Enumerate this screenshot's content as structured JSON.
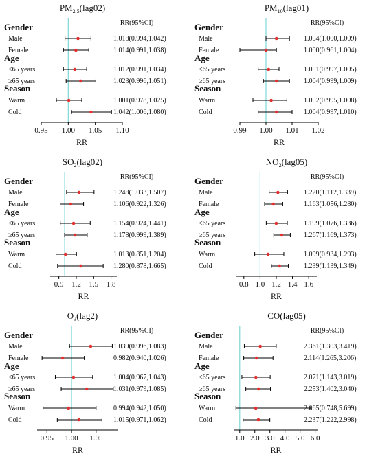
{
  "colors": {
    "refline": "#7fd8d8",
    "point": "#e03030",
    "ci": "#000000",
    "axis": "#000000"
  },
  "chart_data": [
    {
      "type": "forest",
      "title": "PM2.5(lag02)",
      "title_main": "PM",
      "title_sub": "2.5",
      "title_tail": "(lag02)",
      "header": "RR(95%CI)",
      "xlabel": "RR",
      "xlim": [
        0.95,
        1.1
      ],
      "ticks": [
        "0.95",
        "1.00",
        "1.05",
        "1.10"
      ],
      "tick_values": [
        0.95,
        1.0,
        1.05,
        1.1
      ],
      "ref": 1.0,
      "groups": [
        {
          "name": "Gender",
          "rows": [
            {
              "label": "Male",
              "rr": 1.018,
              "lo": 0.994,
              "hi": 1.042,
              "text": "1.018(0.994,1.042)"
            },
            {
              "label": "Female",
              "rr": 1.014,
              "lo": 0.991,
              "hi": 1.038,
              "text": "1.014(0.991,1.038)"
            }
          ]
        },
        {
          "name": "Age",
          "rows": [
            {
              "label": "<65 years",
              "rr": 1.012,
              "lo": 0.991,
              "hi": 1.034,
              "text": "1.012(0.991,1.034)"
            },
            {
              "label": "≥65 years",
              "rr": 1.023,
              "lo": 0.996,
              "hi": 1.051,
              "text": "1.023(0.996,1.051)"
            }
          ]
        },
        {
          "name": "Season",
          "rows": [
            {
              "label": "Warm",
              "rr": 1.001,
              "lo": 0.978,
              "hi": 1.025,
              "text": "1.001(0.978,1.025)"
            },
            {
              "label": "Cold",
              "rr": 1.042,
              "lo": 1.006,
              "hi": 1.08,
              "text": "1.042(1.006,1.080)"
            }
          ]
        }
      ]
    },
    {
      "type": "forest",
      "title": "PM10(lag01)",
      "title_main": "PM",
      "title_sub": "10",
      "title_tail": "(lag01)",
      "header": "RR(95%CI)",
      "xlabel": "RR",
      "xlim": [
        0.99,
        1.02
      ],
      "ticks": [
        "0.99",
        "1.00",
        "1.01",
        "1.02"
      ],
      "tick_values": [
        0.99,
        1.0,
        1.01,
        1.02
      ],
      "ref": 1.0,
      "groups": [
        {
          "name": "Gender",
          "rows": [
            {
              "label": "Male",
              "rr": 1.004,
              "lo": 1.0,
              "hi": 1.009,
              "text": "1.004(1.000,1.009)"
            },
            {
              "label": "Female",
              "rr": 1.0,
              "lo": 0.961,
              "hi": 1.004,
              "text": "1.000(0.961,1.004)"
            }
          ]
        },
        {
          "name": "Age",
          "rows": [
            {
              "label": "<65 years",
              "rr": 1.001,
              "lo": 0.997,
              "hi": 1.005,
              "text": "1.001(0.997,1.005)"
            },
            {
              "label": "≥65 years",
              "rr": 1.004,
              "lo": 0.999,
              "hi": 1.009,
              "text": "1.004(0.999,1.009)"
            }
          ]
        },
        {
          "name": "Season",
          "rows": [
            {
              "label": "Warm",
              "rr": 1.002,
              "lo": 0.995,
              "hi": 1.008,
              "text": "1.002(0.995,1.008)"
            },
            {
              "label": "Cold",
              "rr": 1.004,
              "lo": 0.997,
              "hi": 1.01,
              "text": "1.004(0.997,1.010)"
            }
          ]
        }
      ]
    },
    {
      "type": "forest",
      "title": "SO2(lag02)",
      "title_main": "SO",
      "title_sub": "2",
      "title_tail": "(lag02)",
      "header": "RR(95%CI)",
      "xlabel": "RR",
      "xlim": [
        0.75,
        1.9
      ],
      "ticks": [
        "0.9",
        "1.2",
        "1.5",
        "1.8"
      ],
      "tick_values": [
        0.9,
        1.2,
        1.5,
        1.8
      ],
      "ref": 1.0,
      "groups": [
        {
          "name": "Gender",
          "rows": [
            {
              "label": "Male",
              "rr": 1.248,
              "lo": 1.033,
              "hi": 1.507,
              "text": "1.248(1.033,1.507)"
            },
            {
              "label": "Female",
              "rr": 1.106,
              "lo": 0.922,
              "hi": 1.326,
              "text": "1.106(0.922,1.326)"
            }
          ]
        },
        {
          "name": "Age",
          "rows": [
            {
              "label": "<65 years",
              "rr": 1.154,
              "lo": 0.924,
              "hi": 1.441,
              "text": "1.154(0.924,1.441)"
            },
            {
              "label": "≥65 years",
              "rr": 1.178,
              "lo": 0.999,
              "hi": 1.389,
              "text": "1.178(0.999,1.389)"
            }
          ]
        },
        {
          "name": "Season",
          "rows": [
            {
              "label": "Warm",
              "rr": 1.013,
              "lo": 0.851,
              "hi": 1.204,
              "text": "1.013(0.851,1.204)"
            },
            {
              "label": "Cold",
              "rr": 1.28,
              "lo": 0.878,
              "hi": 1.665,
              "text": "1.280(0.878,1.665)"
            }
          ]
        }
      ]
    },
    {
      "type": "forest",
      "title": "NO2(lag05)",
      "title_main": "NO",
      "title_sub": "2",
      "title_tail": "(lag05)",
      "header": "RR(95%CI)",
      "xlabel": "RR",
      "xlim": [
        0.7,
        1.7
      ],
      "ticks": [
        "0.8",
        "1.0",
        "1.2",
        "1.4",
        "1.6"
      ],
      "tick_values": [
        0.8,
        1.0,
        1.2,
        1.4,
        1.6
      ],
      "ref": 1.0,
      "groups": [
        {
          "name": "Gender",
          "rows": [
            {
              "label": "Male",
              "rr": 1.22,
              "lo": 1.112,
              "hi": 1.339,
              "text": "1.220(1.112,1.339)"
            },
            {
              "label": "Female",
              "rr": 1.163,
              "lo": 1.056,
              "hi": 1.28,
              "text": "1.163(1.056,1.280)"
            }
          ]
        },
        {
          "name": "Age",
          "rows": [
            {
              "label": "<65 years",
              "rr": 1.199,
              "lo": 1.076,
              "hi": 1.336,
              "text": "1.199(1.076,1.336)"
            },
            {
              "label": "≥65 years",
              "rr": 1.267,
              "lo": 1.169,
              "hi": 1.373,
              "text": "1.267(1.169,1.373)"
            }
          ]
        },
        {
          "name": "Season",
          "rows": [
            {
              "label": "Warm",
              "rr": 1.099,
              "lo": 0.934,
              "hi": 1.293,
              "text": "1.099(0.934,1.293)"
            },
            {
              "label": "Cold",
              "rr": 1.239,
              "lo": 1.139,
              "hi": 1.349,
              "text": "1.239(1.139,1.349)"
            }
          ]
        }
      ]
    },
    {
      "type": "forest",
      "title": "O3(lag2)",
      "title_main": "O",
      "title_sub": "3",
      "title_tail": "(lag2)",
      "header": "RR(95%CI)",
      "xlabel": "RR",
      "xlim": [
        0.93,
        1.095
      ],
      "ticks": [
        "0.95",
        "1.00",
        "1.05"
      ],
      "tick_values": [
        0.95,
        1.0,
        1.05
      ],
      "ref": 1.0,
      "groups": [
        {
          "name": "Gender",
          "rows": [
            {
              "label": "Male",
              "rr": 1.039,
              "lo": 0.996,
              "hi": 1.083,
              "text": "1.039(0.996,1.083)"
            },
            {
              "label": "Female",
              "rr": 0.982,
              "lo": 0.94,
              "hi": 1.026,
              "text": "0.982(0.940,1.026)"
            }
          ]
        },
        {
          "name": "Age",
          "rows": [
            {
              "label": "<65 years",
              "rr": 1.004,
              "lo": 0.967,
              "hi": 1.043,
              "text": "1.004(0.967,1.043)"
            },
            {
              "label": "≥65 years",
              "rr": 1.031,
              "lo": 0.979,
              "hi": 1.085,
              "text": "1.031(0.979,1.085)"
            }
          ]
        },
        {
          "name": "Season",
          "rows": [
            {
              "label": "Warm",
              "rr": 0.994,
              "lo": 0.942,
              "hi": 1.05,
              "text": "0.994(0.942,1.050)"
            },
            {
              "label": "Cold",
              "rr": 1.015,
              "lo": 0.971,
              "hi": 1.062,
              "text": "1.015(0.971,1.062)"
            }
          ]
        }
      ]
    },
    {
      "type": "forest",
      "title": "CO(lag05)",
      "title_main": "CO",
      "title_sub": "",
      "title_tail": "(lag05)",
      "header": "RR(95%CI)",
      "xlabel": "RR",
      "xlim": [
        0.6,
        6.2
      ],
      "ticks": [
        "1.0",
        "2.0",
        "3.0",
        "4.0",
        "5.0",
        "6.0"
      ],
      "tick_values": [
        1.0,
        2.0,
        3.0,
        4.0,
        5.0,
        6.0
      ],
      "ref": 1.0,
      "groups": [
        {
          "name": "Gender",
          "rows": [
            {
              "label": "Male",
              "rr": 2.361,
              "lo": 1.303,
              "hi": 3.419,
              "text": "2.361(1.303,3.419)"
            },
            {
              "label": "Female",
              "rr": 2.114,
              "lo": 1.265,
              "hi": 3.206,
              "text": "2.114(1.265,3.206)"
            }
          ]
        },
        {
          "name": "Age",
          "rows": [
            {
              "label": "<65 years",
              "rr": 2.071,
              "lo": 1.143,
              "hi": 3.019,
              "text": "2.071(1.143,3.019)"
            },
            {
              "label": "≥65 years",
              "rr": 2.253,
              "lo": 1.402,
              "hi": 3.04,
              "text": "2.253(1.402,3.040)"
            }
          ]
        },
        {
          "name": "Season",
          "rows": [
            {
              "label": "Warm",
              "rr": 2.065,
              "lo": 0.748,
              "hi": 5.699,
              "text": "2.065(0.748,5.699)"
            },
            {
              "label": "Cold",
              "rr": 2.237,
              "lo": 1.222,
              "hi": 2.998,
              "text": "2.237(1.222,2.998)"
            }
          ]
        }
      ]
    }
  ]
}
